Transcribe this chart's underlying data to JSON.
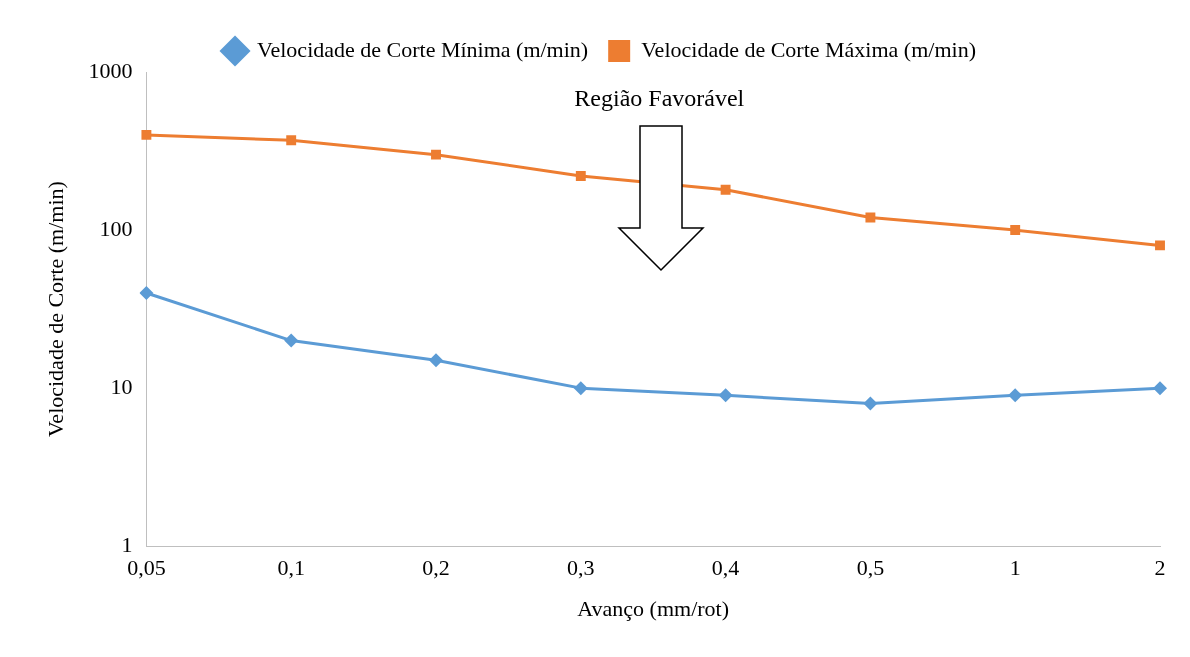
{
  "chart_data": {
    "type": "line",
    "xlabel": "Avanço (mm/rot)",
    "ylabel": "Velocidade de Corte (m/min)",
    "categories": [
      "0,05",
      "0,1",
      "0,2",
      "0,3",
      "0,4",
      "0,5",
      "1",
      "2"
    ],
    "series": [
      {
        "name": "Velocidade de Corte Mínima (m/min)",
        "color": "#5b9bd5",
        "marker": "diamond",
        "values": [
          40,
          20,
          15,
          10,
          9,
          8,
          9,
          10
        ]
      },
      {
        "name": "Velocidade de Corte Máxima (m/min)",
        "color": "#ed7d31",
        "marker": "square",
        "values": [
          400,
          370,
          300,
          220,
          180,
          120,
          100,
          80
        ]
      }
    ],
    "log": "y",
    "ylim": [
      1,
      1000
    ],
    "yticks": [
      1,
      10,
      100,
      1000
    ],
    "grid": false,
    "legend": "top",
    "annotations": [
      "Região Favorável"
    ]
  }
}
